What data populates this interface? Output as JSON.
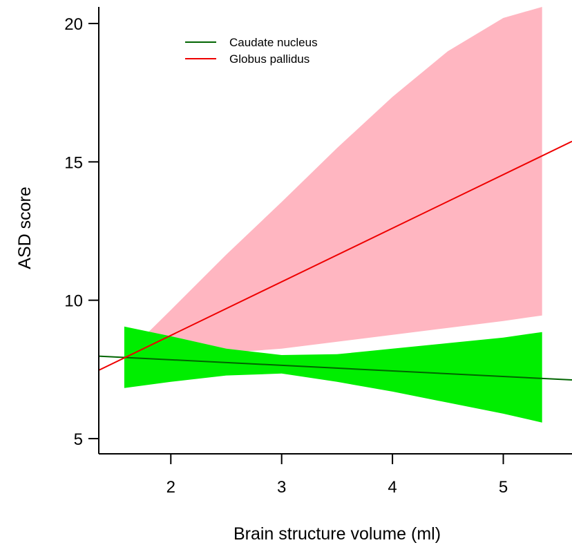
{
  "chart_data": {
    "type": "line",
    "xlabel": "Brain structure volume (ml)",
    "ylabel": "ASD score",
    "xlim": [
      1.35,
      5.62
    ],
    "ylim": [
      4.45,
      20.6
    ],
    "xticks": [
      2,
      3,
      4,
      5
    ],
    "yticks": [
      5,
      10,
      15,
      20
    ],
    "grid": false,
    "legend_position": "top-left",
    "series": [
      {
        "name": "Caudate nucleus",
        "color": "#006400",
        "line": {
          "x": [
            1.35,
            5.62
          ],
          "y": [
            7.98,
            7.12
          ]
        },
        "band_color": "#00ee00",
        "band": {
          "x": [
            1.58,
            2.0,
            2.5,
            3.0,
            3.5,
            4.0,
            4.5,
            5.0,
            5.35
          ],
          "upper": [
            9.05,
            8.7,
            8.25,
            8.02,
            8.05,
            8.25,
            8.45,
            8.65,
            8.85
          ],
          "lower": [
            6.83,
            7.05,
            7.28,
            7.35,
            7.05,
            6.7,
            6.3,
            5.9,
            5.58
          ]
        }
      },
      {
        "name": "Globus pallidus",
        "color": "#ee0000",
        "line": {
          "x": [
            1.35,
            5.62
          ],
          "y": [
            7.47,
            15.74
          ]
        },
        "band_color": "#ffb6c1",
        "band": {
          "x": [
            1.76,
            2.0,
            2.5,
            3.0,
            3.5,
            4.0,
            4.5,
            5.0,
            5.35
          ],
          "upper": [
            8.7,
            9.65,
            11.65,
            13.55,
            15.5,
            17.35,
            19.0,
            20.2,
            20.6
          ],
          "lower": [
            7.95,
            8.05,
            8.1,
            8.25,
            8.5,
            8.75,
            9.0,
            9.25,
            9.45
          ]
        }
      }
    ]
  }
}
